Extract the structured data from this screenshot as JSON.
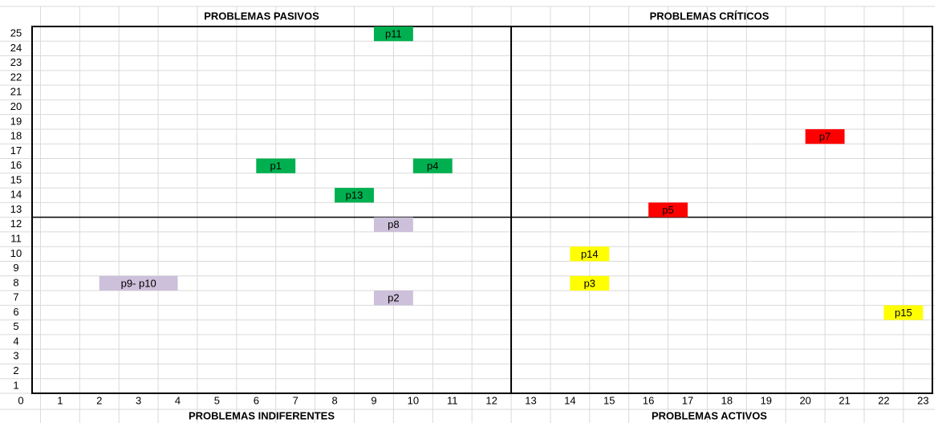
{
  "chart_data": {
    "type": "scatter",
    "quadrant_labels": {
      "top_left": "PROBLEMAS PASIVOS",
      "top_right": "PROBLEMAS CRÍTICOS",
      "bottom_left": "PROBLEMAS INDIFERENTES",
      "bottom_right": "PROBLEMAS ACTIVOS"
    },
    "quadrant_x": 12.5,
    "quadrant_y": 12.5,
    "labels": [
      "p11",
      "p1",
      "p4",
      "p13",
      "p8",
      "p2",
      "p9- p10",
      "p14",
      "p3",
      "p5",
      "p7",
      "p15"
    ],
    "x": [
      9.5,
      6.5,
      10.5,
      8.5,
      9.5,
      9.5,
      3,
      14.5,
      14.5,
      16.5,
      20.5,
      22.5
    ],
    "y": [
      25,
      16,
      16,
      14,
      12,
      7,
      8,
      10,
      8,
      13,
      18,
      6
    ],
    "colors": [
      "#00b050",
      "#00b050",
      "#00b050",
      "#00b050",
      "#ccc0da",
      "#ccc0da",
      "#ccc0da",
      "#ffff00",
      "#ffff00",
      "#ff0000",
      "#ff0000",
      "#ffff00"
    ],
    "xlim": [
      0,
      23.3
    ],
    "ylim": [
      0.5,
      25.5
    ],
    "xticks": [
      0,
      1,
      2,
      3,
      4,
      5,
      6,
      7,
      8,
      9,
      10,
      11,
      12,
      13,
      14,
      15,
      16,
      17,
      18,
      19,
      20,
      21,
      22,
      23
    ],
    "yticks": [
      1,
      2,
      3,
      4,
      5,
      6,
      7,
      8,
      9,
      10,
      11,
      12,
      13,
      14,
      15,
      16,
      17,
      18,
      19,
      20,
      21,
      22,
      23,
      24,
      25
    ],
    "grid": true
  }
}
